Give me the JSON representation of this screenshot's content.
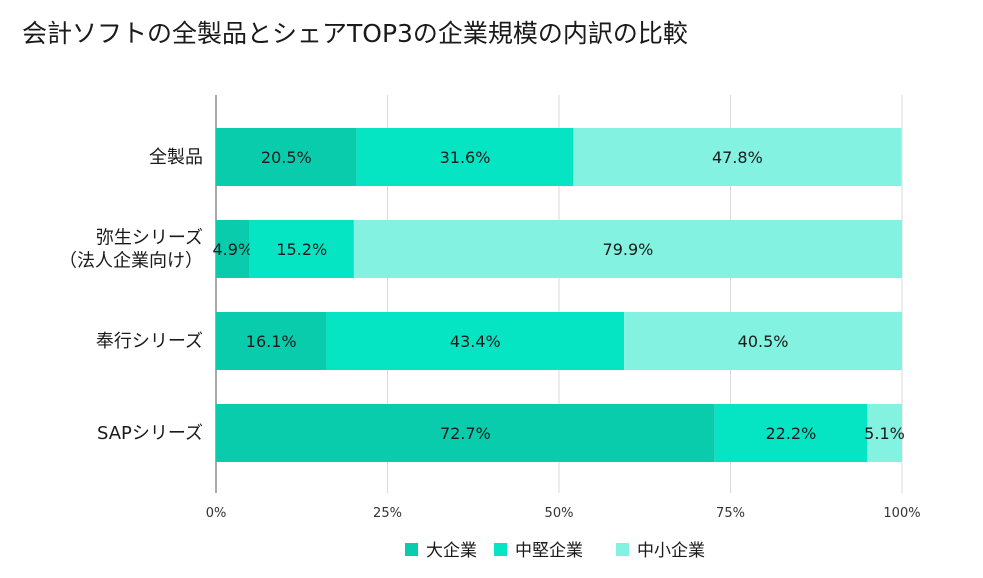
{
  "chart_data": {
    "type": "bar",
    "orientation": "horizontal",
    "stacked": true,
    "title": "会計ソフトの全製品とシェアTOP3の企業規模の内訳の比較",
    "categories": [
      [
        "全製品"
      ],
      [
        "弥生シリーズ",
        "（法人企業向け）"
      ],
      [
        "奉行シリーズ"
      ],
      [
        "SAPシリーズ"
      ]
    ],
    "series": [
      {
        "name": "大企業",
        "color": "#09ccad",
        "values": [
          20.5,
          4.9,
          16.1,
          72.7
        ]
      },
      {
        "name": "中堅企業",
        "color": "#05e5c4",
        "values": [
          31.6,
          15.2,
          43.4,
          22.2
        ]
      },
      {
        "name": "中小企業",
        "color": "#84f2e0",
        "values": [
          47.8,
          79.9,
          40.5,
          5.1
        ]
      }
    ],
    "x_ticks": [
      "0%",
      "25%",
      "50%",
      "75%",
      "100%"
    ],
    "xlim": [
      0,
      100
    ],
    "grid": true,
    "legend_position": "bottom",
    "xlabel": "",
    "ylabel": ""
  }
}
